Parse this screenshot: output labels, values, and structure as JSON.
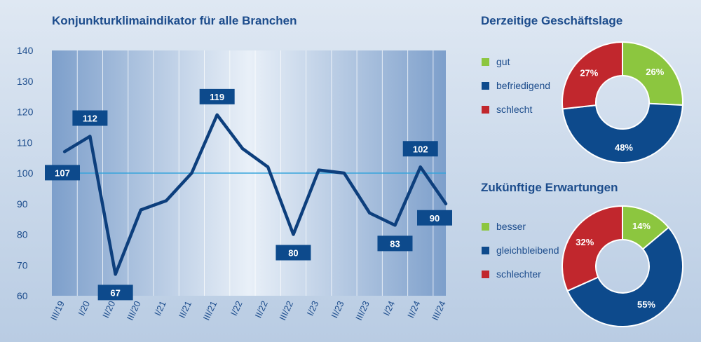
{
  "chart_data": [
    {
      "type": "line",
      "title": "Konjunkturklimaindikator für alle Branchen",
      "categories": [
        "III/19",
        "I/20",
        "II/20",
        "III/20",
        "I/21",
        "II/21",
        "III/21",
        "I/22",
        "II/22",
        "III/22",
        "I/23",
        "II/23",
        "III/23",
        "I/24",
        "II/24",
        "III/24"
      ],
      "values": [
        107,
        112,
        67,
        88,
        91,
        100,
        119,
        108,
        102,
        80,
        101,
        100,
        87,
        83,
        102,
        90
      ],
      "labeled_points": [
        {
          "index": 0,
          "text": "107"
        },
        {
          "index": 1,
          "text": "112"
        },
        {
          "index": 2,
          "text": "67"
        },
        {
          "index": 6,
          "text": "119"
        },
        {
          "index": 9,
          "text": "80"
        },
        {
          "index": 13,
          "text": "83"
        },
        {
          "index": 14,
          "text": "102"
        },
        {
          "index": 15,
          "text": "90"
        }
      ],
      "ylim": [
        60,
        140
      ],
      "yticks": [
        "60",
        "70",
        "80",
        "90",
        "100",
        "110",
        "120",
        "130",
        "140"
      ],
      "reference_line": 100,
      "grid": "vertical",
      "colors": {
        "line": "#0d3f7d",
        "reference": "#35a4dc",
        "label_bg": "#0d4a8c"
      }
    },
    {
      "type": "pie",
      "title": "Derzeitige Geschäftslage",
      "legend_placement": "left",
      "slices": [
        {
          "name": "gut",
          "value": 26,
          "label": "26%",
          "color": "#8cc63f"
        },
        {
          "name": "befriedigend",
          "value": 48,
          "label": "48%",
          "color": "#0d4a8c"
        },
        {
          "name": "schlecht",
          "value": 27,
          "label": "27%",
          "color": "#c1272d"
        }
      ]
    },
    {
      "type": "pie",
      "title": "Zukünftige Erwartungen",
      "legend_placement": "left",
      "slices": [
        {
          "name": "besser",
          "value": 14,
          "label": "14%",
          "color": "#8cc63f"
        },
        {
          "name": "gleichbleibend",
          "value": 55,
          "label": "55%",
          "color": "#0d4a8c"
        },
        {
          "name": "schlechter",
          "value": 32,
          "label": "32%",
          "color": "#c1272d"
        }
      ]
    }
  ]
}
